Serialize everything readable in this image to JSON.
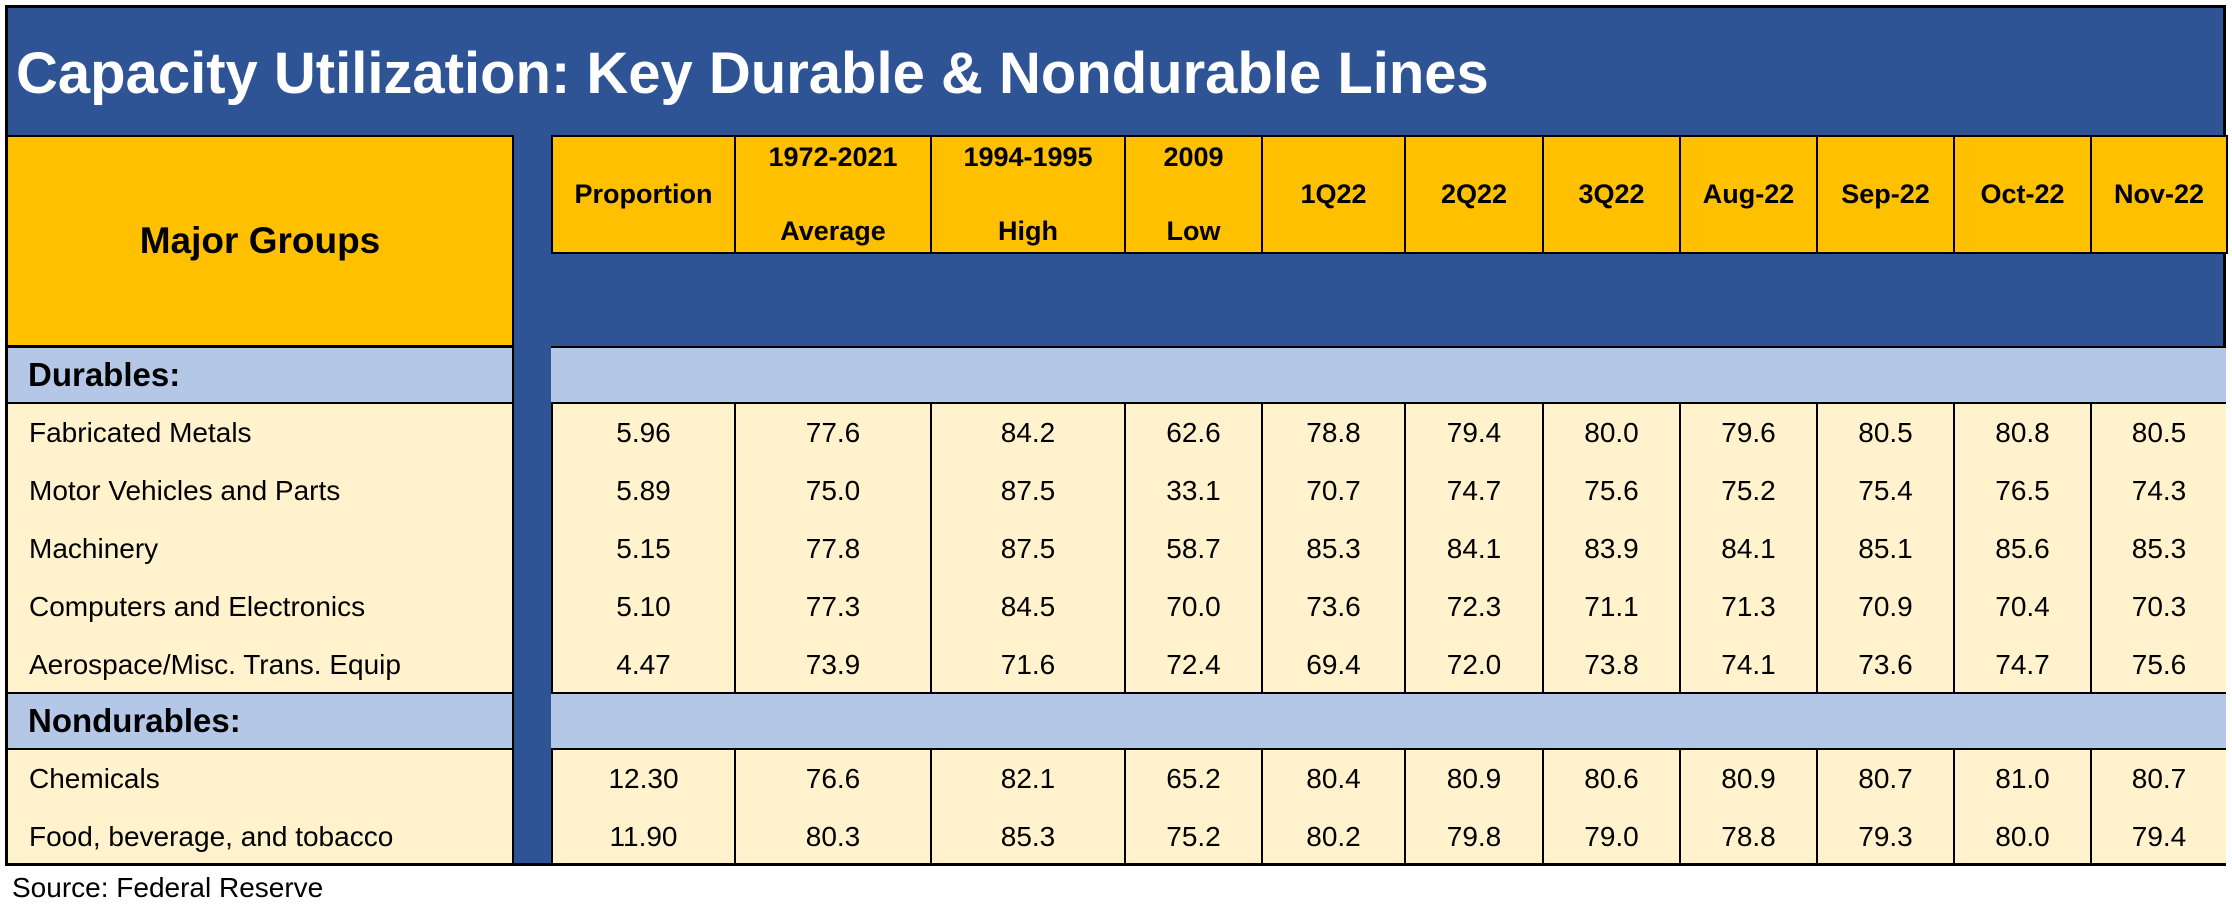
{
  "title": "Capacity Utilization: Key Durable & Nondurable Lines",
  "major_groups_label": "Major Groups",
  "source": "Source: Federal Reserve",
  "colors": {
    "title_bar": "#2f5496",
    "header": "#ffc000",
    "section": "#b4c7e7",
    "row": "#fff2cc"
  },
  "chart_data": {
    "type": "table",
    "title": "Capacity Utilization: Key Durable & Nondurable Lines",
    "columns": [
      {
        "line1": "Proportion",
        "line2": ""
      },
      {
        "line1": "1972-2021",
        "line2": "Average"
      },
      {
        "line1": "1994-1995",
        "line2": "High"
      },
      {
        "line1": "2009",
        "line2": "Low"
      },
      {
        "line1": "1Q22",
        "line2": ""
      },
      {
        "line1": "2Q22",
        "line2": ""
      },
      {
        "line1": "3Q22",
        "line2": ""
      },
      {
        "line1": "Aug-22",
        "line2": ""
      },
      {
        "line1": "Sep-22",
        "line2": ""
      },
      {
        "line1": "Oct-22",
        "line2": ""
      },
      {
        "line1": "Nov-22",
        "line2": ""
      }
    ],
    "sections": [
      {
        "label": "Durables:",
        "rows": [
          {
            "label": "Fabricated Metals",
            "values": [
              "5.96",
              "77.6",
              "84.2",
              "62.6",
              "78.8",
              "79.4",
              "80.0",
              "79.6",
              "80.5",
              "80.8",
              "80.5"
            ]
          },
          {
            "label": "Motor Vehicles and Parts",
            "values": [
              "5.89",
              "75.0",
              "87.5",
              "33.1",
              "70.7",
              "74.7",
              "75.6",
              "75.2",
              "75.4",
              "76.5",
              "74.3"
            ]
          },
          {
            "label": "Machinery",
            "values": [
              "5.15",
              "77.8",
              "87.5",
              "58.7",
              "85.3",
              "84.1",
              "83.9",
              "84.1",
              "85.1",
              "85.6",
              "85.3"
            ]
          },
          {
            "label": "Computers and Electronics",
            "values": [
              "5.10",
              "77.3",
              "84.5",
              "70.0",
              "73.6",
              "72.3",
              "71.1",
              "71.3",
              "70.9",
              "70.4",
              "70.3"
            ]
          },
          {
            "label": "Aerospace/Misc. Trans. Equip",
            "values": [
              "4.47",
              "73.9",
              "71.6",
              "72.4",
              "69.4",
              "72.0",
              "73.8",
              "74.1",
              "73.6",
              "74.7",
              "75.6"
            ]
          }
        ]
      },
      {
        "label": "Nondurables:",
        "rows": [
          {
            "label": "Chemicals",
            "values": [
              "12.30",
              "76.6",
              "82.1",
              "65.2",
              "80.4",
              "80.9",
              "80.6",
              "80.9",
              "80.7",
              "81.0",
              "80.7"
            ]
          },
          {
            "label": "Food, beverage, and tobacco",
            "values": [
              "11.90",
              "80.3",
              "85.3",
              "75.2",
              "80.2",
              "79.8",
              "79.0",
              "78.8",
              "79.3",
              "80.0",
              "79.4"
            ]
          }
        ]
      }
    ]
  }
}
